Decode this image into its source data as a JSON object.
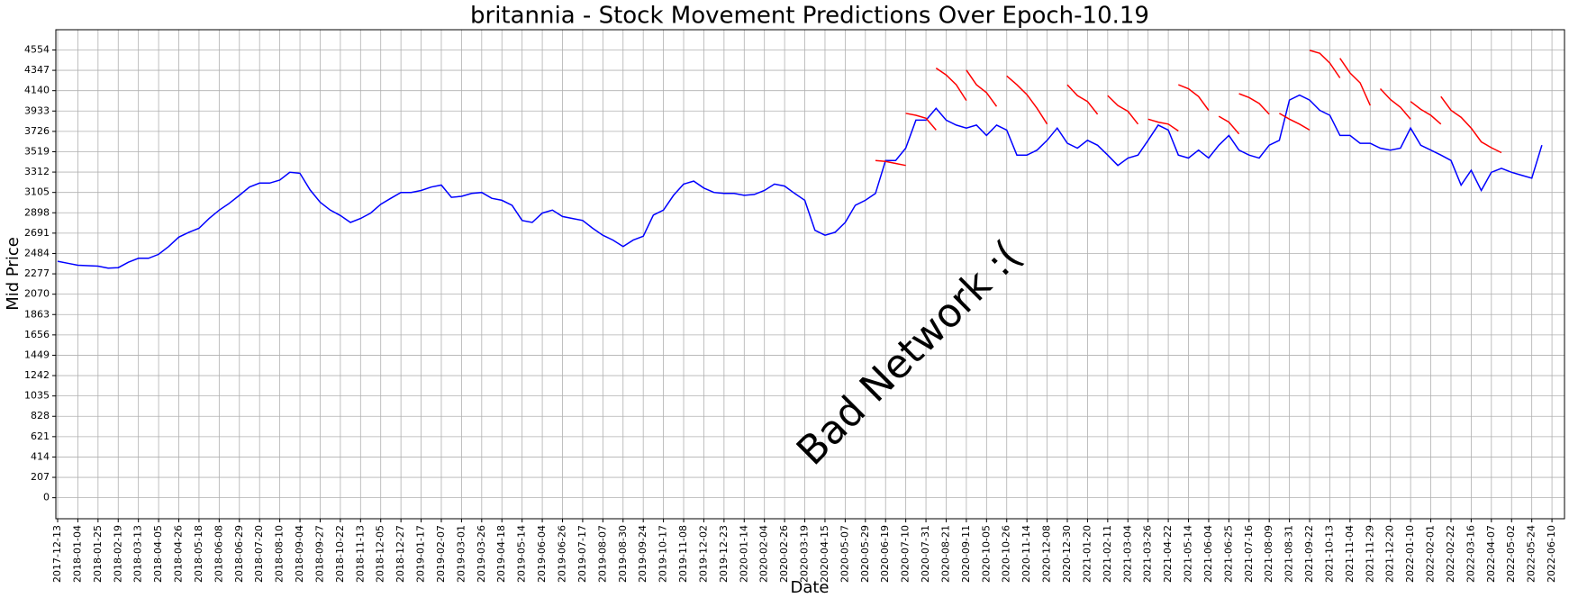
{
  "chart_data": {
    "type": "line",
    "title": "britannia - Stock Movement Predictions Over Epoch-10.19",
    "title_color": "#17bfbf",
    "xlabel": "Date",
    "ylabel": "Mid Price",
    "annotation": {
      "text": "Bad Network :(",
      "color": "#ff0000"
    },
    "grid": true,
    "ylim": [
      -214,
      4760
    ],
    "yticks": [
      0,
      207,
      414,
      621,
      828,
      1035,
      1242,
      1449,
      1656,
      1863,
      2070,
      2277,
      2484,
      2691,
      2898,
      3105,
      3312,
      3519,
      3726,
      3933,
      4140,
      4347,
      4554
    ],
    "categories": [
      "2017-12-13",
      null,
      "2018-01-04",
      null,
      "2018-01-25",
      null,
      "2018-02-19",
      null,
      "2018-03-13",
      null,
      "2018-04-05",
      null,
      "2018-04-26",
      null,
      "2018-05-18",
      null,
      "2018-06-08",
      null,
      "2018-06-29",
      null,
      "2018-07-20",
      null,
      "2018-08-10",
      null,
      "2018-09-04",
      null,
      "2018-09-27",
      null,
      "2018-10-22",
      null,
      "2018-11-13",
      null,
      "2018-12-05",
      null,
      "2018-12-27",
      null,
      "2019-01-17",
      null,
      "2019-02-07",
      null,
      "2019-03-01",
      null,
      "2019-03-26",
      null,
      "2019-04-18",
      null,
      "2019-05-14",
      null,
      "2019-06-04",
      null,
      "2019-06-26",
      null,
      "2019-07-17",
      null,
      "2019-08-07",
      null,
      "2019-08-30",
      null,
      "2019-09-24",
      null,
      "2019-10-17",
      null,
      "2019-11-08",
      null,
      "2019-12-02",
      null,
      "2019-12-23",
      null,
      "2020-01-14",
      null,
      "2020-02-04",
      null,
      "2020-02-26",
      null,
      "2020-03-19",
      null,
      "2020-04-15",
      null,
      "2020-05-07",
      null,
      "2020-05-29",
      null,
      "2020-06-19",
      null,
      "2020-07-10",
      null,
      "2020-07-31",
      null,
      "2020-08-21",
      null,
      "2020-09-11",
      null,
      "2020-10-05",
      null,
      "2020-10-26",
      null,
      "2020-11-14",
      null,
      "2020-12-08",
      null,
      "2020-12-30",
      null,
      "2021-01-20",
      null,
      "2021-02-11",
      null,
      "2021-03-04",
      null,
      "2021-03-26",
      null,
      "2021-04-22",
      null,
      "2021-05-14",
      null,
      "2021-06-04",
      null,
      "2021-06-25",
      null,
      "2021-07-16",
      null,
      "2021-08-09",
      null,
      "2021-08-31",
      null,
      "2021-09-22",
      null,
      "2021-10-13",
      null,
      "2021-11-04",
      null,
      "2021-11-29",
      null,
      "2021-12-20",
      null,
      "2022-01-10",
      null,
      "2022-02-01",
      null,
      "2022-02-22",
      null,
      "2022-03-16",
      null,
      "2022-04-07",
      null,
      "2022-05-02",
      null,
      "2022-05-24",
      null,
      "2022-06-10"
    ],
    "series": [
      {
        "color": "#0000ff",
        "values": [
          2405,
          2385,
          2365,
          2360,
          2355,
          2335,
          2340,
          2395,
          2435,
          2435,
          2475,
          2555,
          2650,
          2700,
          2740,
          2840,
          2925,
          2995,
          3075,
          3160,
          3200,
          3200,
          3230,
          3310,
          3300,
          3130,
          3005,
          2925,
          2870,
          2800,
          2840,
          2895,
          2985,
          3045,
          3105,
          3105,
          3125,
          3160,
          3180,
          3055,
          3065,
          3095,
          3105,
          3045,
          3025,
          2975,
          2820,
          2800,
          2895,
          2925,
          2860,
          2840,
          2820,
          2740,
          2670,
          2620,
          2555,
          2620,
          2660,
          2875,
          2925,
          3075,
          3190,
          3220,
          3150,
          3105,
          3095,
          3095,
          3075,
          3085,
          3125,
          3190,
          3170,
          3095,
          3025,
          2720,
          2670,
          2700,
          2800,
          2975,
          3025,
          3095,
          3430,
          3430,
          3555,
          3840,
          3840,
          3960,
          3840,
          3790,
          3760,
          3790,
          3685,
          3790,
          3740,
          3485,
          3485,
          3535,
          3635,
          3760,
          3605,
          3555,
          3635,
          3585,
          3485,
          3380,
          3455,
          3485,
          3635,
          3790,
          3740,
          3485,
          3455,
          3535,
          3455,
          3585,
          3685,
          3535,
          3485,
          3455,
          3586,
          3635,
          4045,
          4095,
          4045,
          3940,
          3890,
          3685,
          3685,
          3605,
          3605,
          3555,
          3535,
          3555,
          3760,
          3585,
          3535,
          3485,
          3430,
          3180,
          3330,
          3125,
          3310,
          3350,
          3310,
          3280,
          3250,
          3586,
          null
        ]
      },
      {
        "color": "#ff0000",
        "values": [
          null,
          null,
          null,
          null,
          null,
          null,
          null,
          null,
          null,
          null,
          null,
          null,
          null,
          null,
          null,
          null,
          null,
          null,
          null,
          null,
          null,
          null,
          null,
          null,
          null,
          null,
          null,
          null,
          null,
          null,
          null,
          null,
          null,
          null,
          null,
          null,
          null,
          null,
          null,
          null,
          null,
          null,
          null,
          null,
          null,
          null,
          null,
          null,
          null,
          null,
          null,
          null,
          null,
          null,
          null,
          null,
          null,
          null,
          null,
          null,
          null,
          null,
          null,
          null,
          null,
          null,
          null,
          null,
          null,
          null,
          null,
          null,
          null,
          null,
          null,
          null,
          null,
          null,
          null,
          null,
          null,
          3430,
          3420,
          3400,
          3380,
          null,
          null,
          4370,
          4300,
          4200,
          4040,
          null,
          null,
          null,
          4290,
          4200,
          4100,
          3960,
          3800,
          null,
          null,
          null,
          null,
          null,
          4090,
          3990,
          3930,
          3800,
          null,
          null,
          null,
          4200,
          4160,
          4080,
          3940,
          null,
          null,
          4110,
          4070,
          4010,
          3900,
          null,
          null,
          null,
          4550,
          4520,
          4420,
          4270,
          null,
          null,
          null,
          4160,
          4050,
          3970,
          3850,
          null,
          null,
          4080,
          3940,
          3870,
          3760,
          3620,
          3560,
          3510,
          null,
          null,
          null,
          null,
          null
        ]
      },
      {
        "color": "#ff0000",
        "values": [
          null,
          null,
          null,
          null,
          null,
          null,
          null,
          null,
          null,
          null,
          null,
          null,
          null,
          null,
          null,
          null,
          null,
          null,
          null,
          null,
          null,
          null,
          null,
          null,
          null,
          null,
          null,
          null,
          null,
          null,
          null,
          null,
          null,
          null,
          null,
          null,
          null,
          null,
          null,
          null,
          null,
          null,
          null,
          null,
          null,
          null,
          null,
          null,
          null,
          null,
          null,
          null,
          null,
          null,
          null,
          null,
          null,
          null,
          null,
          null,
          null,
          null,
          null,
          null,
          null,
          null,
          null,
          null,
          null,
          null,
          null,
          null,
          null,
          null,
          null,
          null,
          null,
          null,
          null,
          null,
          null,
          null,
          null,
          null,
          3910,
          3890,
          3860,
          3740,
          null,
          null,
          4350,
          4200,
          4120,
          3980,
          null,
          null,
          null,
          null,
          null,
          null,
          4200,
          4090,
          4030,
          3900,
          null,
          null,
          null,
          null,
          3850,
          3820,
          3800,
          3730,
          null,
          null,
          null,
          3880,
          3820,
          3700,
          null,
          null,
          null,
          3910,
          3850,
          3800,
          3740,
          null,
          null,
          4470,
          4320,
          4220,
          3990,
          null,
          null,
          null,
          4030,
          3950,
          3890,
          3800,
          null,
          null,
          null,
          null,
          null,
          null,
          null,
          null,
          null,
          null,
          null
        ]
      }
    ]
  }
}
